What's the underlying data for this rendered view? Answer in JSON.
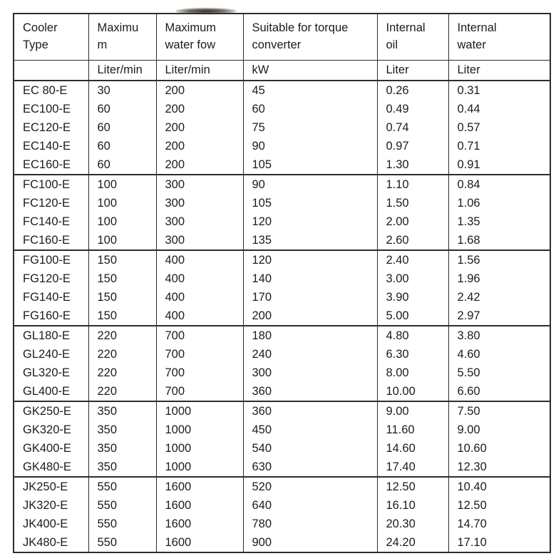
{
  "artifact": {
    "name": "ink-smudge-scan-artifact"
  },
  "colors": {
    "background": "#ffffff",
    "border": "#2d2d2d",
    "text": "#1c1c1c"
  },
  "table": {
    "columns": [
      {
        "id": "cooler-type",
        "header_lines": [
          "Cooler",
          "Type"
        ],
        "unit": ""
      },
      {
        "id": "maximum",
        "header_lines": [
          "Maximu",
          "m"
        ],
        "unit": "Liter/min"
      },
      {
        "id": "maximum-water",
        "header_lines": [
          "Maximum",
          "water fow"
        ],
        "unit": "Liter/min"
      },
      {
        "id": "torque-converter",
        "header_lines": [
          "Suitable for torque",
          "converter"
        ],
        "unit": "kW"
      },
      {
        "id": "internal-oil",
        "header_lines": [
          "Internal",
          "oil"
        ],
        "unit": "Liter"
      },
      {
        "id": "internal-water",
        "header_lines": [
          "Internal",
          "water"
        ],
        "unit": "Liter"
      }
    ],
    "groups": [
      {
        "name": "EC",
        "rows": [
          [
            "EC 80-E",
            "30",
            "200",
            "45",
            "0.26",
            "0.31"
          ],
          [
            "EC100-E",
            "60",
            "200",
            "60",
            "0.49",
            "0.44"
          ],
          [
            "EC120-E",
            "60",
            "200",
            "75",
            "0.74",
            "0.57"
          ],
          [
            "EC140-E",
            "60",
            "200",
            "90",
            "0.97",
            "0.71"
          ],
          [
            "EC160-E",
            "60",
            "200",
            "105",
            "1.30",
            "0.91"
          ]
        ]
      },
      {
        "name": "FC",
        "rows": [
          [
            "FC100-E",
            "100",
            "300",
            "90",
            "1.10",
            "0.84"
          ],
          [
            "FC120-E",
            "100",
            "300",
            "105",
            "1.50",
            "1.06"
          ],
          [
            "FC140-E",
            "100",
            "300",
            "120",
            "2.00",
            "1.35"
          ],
          [
            "FC160-E",
            "100",
            "300",
            "135",
            "2.60",
            "1.68"
          ]
        ]
      },
      {
        "name": "FG",
        "rows": [
          [
            "FG100-E",
            "150",
            "400",
            "120",
            "2.40",
            "1.56"
          ],
          [
            "FG120-E",
            "150",
            "400",
            "140",
            "3.00",
            "1.96"
          ],
          [
            "FG140-E",
            "150",
            "400",
            "170",
            "3.90",
            "2.42"
          ],
          [
            "FG160-E",
            "150",
            "400",
            "200",
            "5.00",
            "2.97"
          ]
        ]
      },
      {
        "name": "GL",
        "rows": [
          [
            "GL180-E",
            "220",
            "700",
            "180",
            "4.80",
            "3.80"
          ],
          [
            "GL240-E",
            "220",
            "700",
            "240",
            "6.30",
            "4.60"
          ],
          [
            "GL320-E",
            "220",
            "700",
            "300",
            "8.00",
            "5.50"
          ],
          [
            "GL400-E",
            "220",
            "700",
            "360",
            "10.00",
            "6.60"
          ]
        ]
      },
      {
        "name": "GK",
        "rows": [
          [
            "GK250-E",
            "350",
            "1000",
            "360",
            "9.00",
            "7.50"
          ],
          [
            "GK320-E",
            "350",
            "1000",
            "450",
            "11.60",
            "9.00"
          ],
          [
            "GK400-E",
            "350",
            "1000",
            "540",
            "14.60",
            "10.60"
          ],
          [
            "GK480-E",
            "350",
            "1000",
            "630",
            "17.40",
            "12.30"
          ]
        ]
      },
      {
        "name": "JK",
        "rows": [
          [
            "JK250-E",
            "550",
            "1600",
            "520",
            "12.50",
            "10.40"
          ],
          [
            "JK320-E",
            "550",
            "1600",
            "640",
            "16.10",
            "12.50"
          ],
          [
            "JK400-E",
            "550",
            "1600",
            "780",
            "20.30",
            "14.70"
          ],
          [
            "JK480-E",
            "550",
            "1600",
            "900",
            "24.20",
            "17.10"
          ]
        ]
      }
    ]
  }
}
